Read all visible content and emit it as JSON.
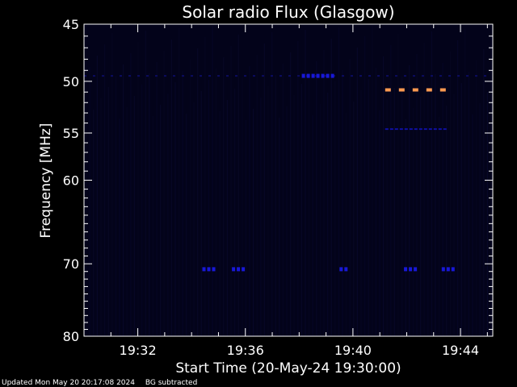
{
  "chart_data": {
    "type": "heatmap",
    "title": "Solar radio Flux (Glasgow)",
    "xlabel": "Start Time (20-May-24 19:30:00)",
    "ylabel": "Frequency [MHz]",
    "x_range_minutes": [
      0,
      15.2
    ],
    "x_ticks": [
      {
        "minute": 2,
        "label": "19:32"
      },
      {
        "minute": 6,
        "label": "19:36"
      },
      {
        "minute": 10,
        "label": "19:40"
      },
      {
        "minute": 14,
        "label": "19:44"
      }
    ],
    "y_scale": "log",
    "ylim": [
      80,
      45
    ],
    "y_ticks": [
      45,
      50,
      55,
      60,
      70,
      80
    ],
    "y_tick_labels": [
      "45",
      "50",
      "55",
      "60",
      "70",
      "80"
    ],
    "colors": {
      "background": "#000000",
      "plot_background": "#03031a",
      "low_intensity": "#0a0a30",
      "medium_intensity": "#1818d8",
      "high_intensity": "#ff9a50",
      "axes": "#ffffff"
    },
    "emission_bands": [
      {
        "freq_mhz": 49.5,
        "start_min": 0.0,
        "end_min": 15.2,
        "intensity": "low"
      },
      {
        "freq_mhz": 49.5,
        "start_min": 8.1,
        "end_min": 9.3,
        "intensity": "medium"
      },
      {
        "freq_mhz": 50.8,
        "start_min": 11.2,
        "end_min": 13.6,
        "intensity": "high"
      },
      {
        "freq_mhz": 54.6,
        "start_min": 11.2,
        "end_min": 13.6,
        "intensity": "medium-low"
      },
      {
        "freq_mhz": 70.7,
        "start_min": 4.4,
        "end_min": 4.9,
        "intensity": "medium"
      },
      {
        "freq_mhz": 70.7,
        "start_min": 5.5,
        "end_min": 6.0,
        "intensity": "medium"
      },
      {
        "freq_mhz": 70.7,
        "start_min": 9.5,
        "end_min": 9.9,
        "intensity": "medium"
      },
      {
        "freq_mhz": 70.7,
        "start_min": 11.9,
        "end_min": 12.4,
        "intensity": "medium"
      },
      {
        "freq_mhz": 70.7,
        "start_min": 13.3,
        "end_min": 13.8,
        "intensity": "medium"
      }
    ]
  },
  "footer": {
    "updated": "Updated Mon May 20 20:17:08 2024",
    "note": "BG subtracted"
  }
}
